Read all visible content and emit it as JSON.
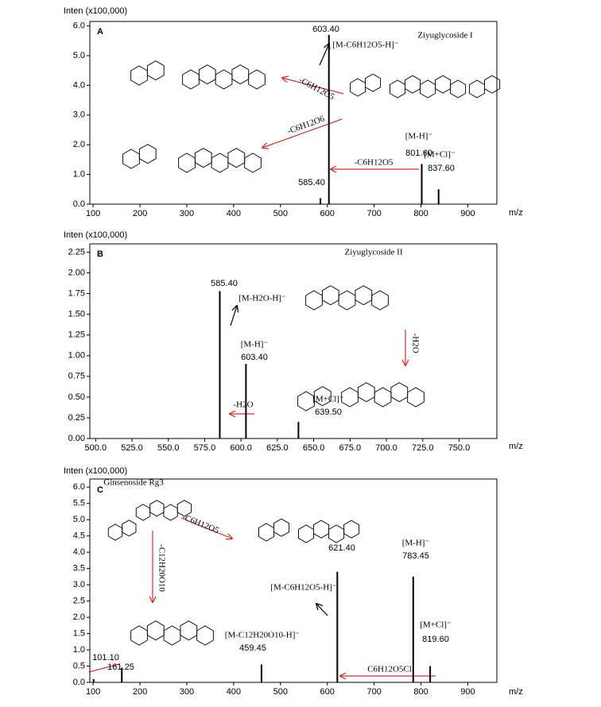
{
  "chart_data": [
    {
      "type": "stem",
      "panel": "A",
      "title": "Ziyuglycoside I",
      "y_label": "Inten (x100,000)",
      "x_label": "m/z",
      "x": [
        585.4,
        603.4,
        801.6,
        837.6
      ],
      "values": [
        0.2,
        5.7,
        1.35,
        0.5
      ],
      "x_labels": [
        "585.40",
        "603.40",
        "801.60",
        "837.60"
      ],
      "color": "#000000",
      "label_color": "#3a5bb5",
      "title_color": "#c0392b",
      "xlim": [
        93,
        962
      ],
      "xticks": [
        100,
        200,
        300,
        400,
        500,
        600,
        700,
        800,
        900
      ],
      "ylim": [
        0,
        6.15
      ],
      "yticks": [
        {
          "value": 0,
          "label": "0.0"
        },
        {
          "value": 1,
          "label": "1.0"
        },
        {
          "value": 2,
          "label": "2.0"
        },
        {
          "value": 3,
          "label": "3.0"
        },
        {
          "value": 4,
          "label": "4.0"
        },
        {
          "value": 5,
          "label": "5.0"
        },
        {
          "value": 6,
          "label": "6.0"
        }
      ],
      "annotations": [
        "[M-C6H12O5-H]⁻",
        "[M-H]⁻",
        "[M+Cl]⁻",
        "-C6H12O5",
        "-C6H12O5",
        "-C6H12O6"
      ]
    },
    {
      "type": "stem",
      "panel": "B",
      "title": "Ziyuglycoside II",
      "y_label": "Inten (x100,000)",
      "x_label": "m/z",
      "x": [
        585.4,
        603.4,
        639.5
      ],
      "values": [
        1.78,
        0.9,
        0.2
      ],
      "x_labels": [
        "585.40",
        "603.40",
        "639.50"
      ],
      "color": "#000000",
      "label_color": "#3a5bb5",
      "title_color": "#c0392b",
      "xlim": [
        496,
        776
      ],
      "xticks": [
        {
          "value": 500,
          "label": "500.0"
        },
        {
          "value": 525,
          "label": "525.0"
        },
        {
          "value": 550,
          "label": "550.0"
        },
        {
          "value": 575,
          "label": "575.0"
        },
        {
          "value": 600,
          "label": "600.0"
        },
        {
          "value": 625,
          "label": "625.0"
        },
        {
          "value": 650,
          "label": "650.0"
        },
        {
          "value": 675,
          "label": "675.0"
        },
        {
          "value": 700,
          "label": "700.0"
        },
        {
          "value": 725,
          "label": "725.0"
        },
        {
          "value": 750,
          "label": "750.0"
        }
      ],
      "ylim": [
        0,
        2.35
      ],
      "yticks": [
        {
          "value": 0,
          "label": "0.00"
        },
        {
          "value": 0.25,
          "label": "0.25"
        },
        {
          "value": 0.5,
          "label": "0.50"
        },
        {
          "value": 0.75,
          "label": "0.75"
        },
        {
          "value": 1,
          "label": "1.00"
        },
        {
          "value": 1.25,
          "label": "1.25"
        },
        {
          "value": 1.5,
          "label": "1.50"
        },
        {
          "value": 1.75,
          "label": "1.75"
        },
        {
          "value": 2,
          "label": "2.00"
        },
        {
          "value": 2.25,
          "label": "2.25"
        }
      ],
      "annotations": [
        "[M-H2O-H]⁻",
        "[M-H]⁻",
        "[M+Cl]⁻",
        "-H2O",
        "-H2O"
      ]
    },
    {
      "type": "stem",
      "panel": "C",
      "title": "Ginsenoside Rg3",
      "y_label": "Inten (x100,000)",
      "x_label": "m/z",
      "x": [
        101.1,
        161.25,
        459.45,
        621.4,
        783.45,
        819.6
      ],
      "values": [
        0.1,
        0.45,
        0.55,
        3.4,
        3.25,
        0.5
      ],
      "x_labels": [
        "101.10",
        "161.25",
        "459.45",
        "621.40",
        "783.45",
        "819.60"
      ],
      "color": "#000000",
      "label_color": "#3a5bb5",
      "title_color": "#c0392b",
      "xlim": [
        93,
        962
      ],
      "xticks": [
        100,
        200,
        300,
        400,
        500,
        600,
        700,
        800,
        900
      ],
      "ylim": [
        0,
        6.25
      ],
      "yticks": [
        {
          "value": 0,
          "label": "0.0"
        },
        {
          "value": 0.5,
          "label": "0.5"
        },
        {
          "value": 1,
          "label": "1.0"
        },
        {
          "value": 1.5,
          "label": "1.5"
        },
        {
          "value": 2,
          "label": "2.0"
        },
        {
          "value": 2.5,
          "label": "2.5"
        },
        {
          "value": 3,
          "label": "3.0"
        },
        {
          "value": 3.5,
          "label": "3.5"
        },
        {
          "value": 4,
          "label": "4.0"
        },
        {
          "value": 4.5,
          "label": "4.5"
        },
        {
          "value": 5,
          "label": "5.0"
        },
        {
          "value": 5.5,
          "label": "5.5"
        },
        {
          "value": 6,
          "label": "6.0"
        }
      ],
      "annotations": [
        "[M-C6H12O5-H]⁻",
        "[M-H]⁻",
        "[M+Cl]⁻",
        "[M-C12H20O10-H]⁻",
        "C6H12O5Cl",
        "-C6H12O5",
        "-C12H20O10"
      ]
    }
  ]
}
